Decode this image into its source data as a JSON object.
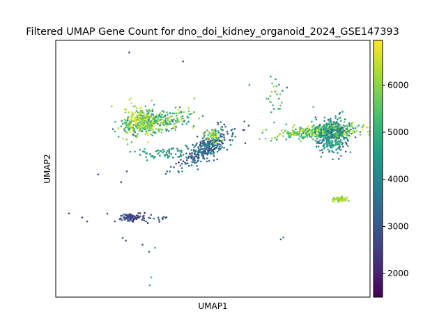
{
  "chart_data": {
    "type": "scatter",
    "title": "Filtered UMAP Gene Count for dno_doi_kidney_organoid_2024_GSE147393",
    "xlabel": "UMAP1",
    "ylabel": "UMAP2",
    "grid": false,
    "x_ticks_shown": false,
    "y_ticks_shown": false,
    "xlim": [
      0,
      100
    ],
    "ylim": [
      0,
      100
    ],
    "colorbar": {
      "colormap": "viridis",
      "range": [
        1500,
        6950
      ],
      "ticks": [
        2000,
        3000,
        4000,
        5000,
        6000
      ],
      "tick_labels": [
        "2000",
        "3000",
        "4000",
        "5000",
        "6000"
      ],
      "colors": [
        "#440154",
        "#482878",
        "#3e4989",
        "#31688e",
        "#26828e",
        "#1f9e89",
        "#35b779",
        "#6ece58",
        "#b5de2b",
        "#fde725"
      ]
    },
    "clusters": [
      {
        "id": "left-upper-arm",
        "cx": 31,
        "cy": 68,
        "sx": 6,
        "sy": 2.2,
        "angle": 12,
        "n": 320,
        "value_mean": 5200,
        "value_sd": 800
      },
      {
        "id": "left-upper-core",
        "cx": 27,
        "cy": 69,
        "sx": 2.3,
        "sy": 2.8,
        "angle": 0,
        "n": 160,
        "value_mean": 6100,
        "value_sd": 600
      },
      {
        "id": "middle-arm",
        "cx": 48,
        "cy": 58,
        "sx": 5.5,
        "sy": 1.8,
        "angle": 38,
        "n": 300,
        "value_mean": 3300,
        "value_sd": 500
      },
      {
        "id": "middle-arm-tip",
        "cx": 50,
        "cy": 63,
        "sx": 1.5,
        "sy": 1.5,
        "angle": 0,
        "n": 50,
        "value_mean": 5600,
        "value_sd": 600
      },
      {
        "id": "small-mid-left",
        "cx": 35,
        "cy": 56,
        "sx": 4.5,
        "sy": 1.2,
        "angle": 5,
        "n": 70,
        "value_mean": 4600,
        "value_sd": 500
      },
      {
        "id": "right-band",
        "cx": 85,
        "cy": 64.5,
        "sx": 6.5,
        "sy": 1.3,
        "angle": 4,
        "n": 420,
        "value_mean": 5700,
        "value_sd": 700
      },
      {
        "id": "right-blob",
        "cx": 88,
        "cy": 63,
        "sx": 2.8,
        "sy": 3.5,
        "angle": 0,
        "n": 320,
        "value_mean": 4300,
        "value_sd": 700
      },
      {
        "id": "right-upper-sparse",
        "cx": 70,
        "cy": 78,
        "sx": 1.5,
        "sy": 3.5,
        "angle": 0,
        "n": 25,
        "value_mean": 5300,
        "value_sd": 700
      },
      {
        "id": "right-small",
        "cx": 90.5,
        "cy": 38,
        "sx": 1.3,
        "sy": 0.5,
        "angle": 0,
        "n": 60,
        "value_mean": 6200,
        "value_sd": 500
      },
      {
        "id": "lower-left",
        "cx": 24,
        "cy": 31,
        "sx": 1.5,
        "sy": 0.8,
        "angle": 0,
        "n": 90,
        "value_mean": 2600,
        "value_sd": 350
      },
      {
        "id": "lower-left-tail",
        "cx": 29,
        "cy": 30.5,
        "sx": 4,
        "sy": 0.8,
        "angle": 0,
        "n": 25,
        "value_mean": 3000,
        "value_sd": 400
      }
    ],
    "outliers": [
      {
        "x": 23.4,
        "y": 95.3,
        "v": 2800
      },
      {
        "x": 40.5,
        "y": 91.8,
        "v": 2700
      },
      {
        "x": 17.8,
        "y": 74.3,
        "v": 6000
      },
      {
        "x": 13.5,
        "y": 47.8,
        "v": 2600
      },
      {
        "x": 20.8,
        "y": 44.8,
        "v": 2700
      },
      {
        "x": 4.2,
        "y": 32.6,
        "v": 2500
      },
      {
        "x": 8.4,
        "y": 31.0,
        "v": 2600
      },
      {
        "x": 10.0,
        "y": 29.5,
        "v": 2700
      },
      {
        "x": 16.4,
        "y": 32.5,
        "v": 3000
      },
      {
        "x": 21.3,
        "y": 23.1,
        "v": 3300
      },
      {
        "x": 22.3,
        "y": 22.0,
        "v": 3100
      },
      {
        "x": 27.6,
        "y": 20.4,
        "v": 3000
      },
      {
        "x": 31.6,
        "y": 19.2,
        "v": 4700
      },
      {
        "x": 29.7,
        "y": 17.7,
        "v": 3700
      },
      {
        "x": 30.4,
        "y": 7.7,
        "v": 5200
      },
      {
        "x": 29.9,
        "y": 4.6,
        "v": 4700
      },
      {
        "x": 71.6,
        "y": 22.5,
        "v": 3500
      },
      {
        "x": 72.4,
        "y": 23.3,
        "v": 3600
      },
      {
        "x": 35.4,
        "y": 65.2,
        "v": 3400
      },
      {
        "x": 18.2,
        "y": 65.4,
        "v": 3100
      },
      {
        "x": 43.7,
        "y": 66.0,
        "v": 6500
      },
      {
        "x": 61.6,
        "y": 82.6,
        "v": 4800
      },
      {
        "x": 73.6,
        "y": 81.6,
        "v": 3200
      },
      {
        "x": 65.8,
        "y": 64.0,
        "v": 5200
      },
      {
        "x": 47.6,
        "y": 64.5,
        "v": 5800
      },
      {
        "x": 22.6,
        "y": 49.0,
        "v": 3000
      }
    ]
  }
}
